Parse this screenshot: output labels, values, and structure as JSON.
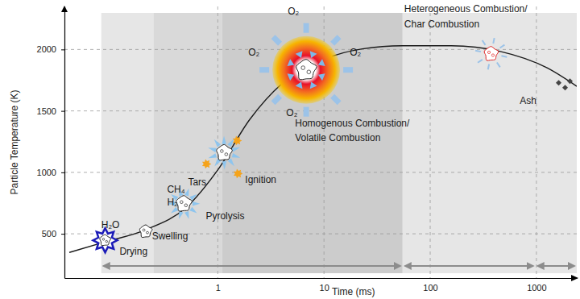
{
  "chart_data": {
    "type": "line",
    "x_label": "Time (ms)",
    "y_label": "Particle Temperature (K)",
    "log": "x",
    "grid": true,
    "xlim": [
      0.036,
      2400
    ],
    "ylim": [
      140,
      2350
    ],
    "xticks": [
      1,
      10,
      100,
      1000
    ],
    "yticks": [
      500,
      1000,
      1500,
      2000
    ],
    "color": "#1a1a1a",
    "x": [
      0.04,
      0.087,
      0.21,
      0.5,
      1,
      2,
      4,
      10,
      23,
      55,
      158,
      450,
      1260,
      2400
    ],
    "values": [
      348,
      434,
      533,
      712,
      1020,
      1430,
      1720,
      1920,
      2005,
      2030,
      2030,
      1985,
      1850,
      1700
    ],
    "shading": [
      {
        "start": 0.08,
        "end": 0.25,
        "color": "#e6e6e6"
      },
      {
        "start": 0.25,
        "end": 1.1,
        "color": "#d9d9d9"
      },
      {
        "start": 1.1,
        "end": 55,
        "color": "#cccccc"
      },
      {
        "start": 55,
        "end": 2400,
        "color": "#e6e6e6"
      }
    ],
    "ranges": [
      {
        "start": 0.08,
        "end": 55
      },
      {
        "start": 55,
        "end": 980
      },
      {
        "start": 980,
        "end": 2400
      }
    ],
    "particles": [
      {
        "x": 0.087,
        "y": 447
      },
      {
        "x": 0.21,
        "y": 520
      },
      {
        "x": 0.48,
        "y": 745
      },
      {
        "x": 1.15,
        "y": 1160
      },
      {
        "x": 6.8,
        "y": 1834
      },
      {
        "x": 375,
        "y": 1965
      },
      {
        "x": 1800,
        "y": 1715
      }
    ],
    "annotations": [
      {
        "text": "H₂O",
        "x": 0.08,
        "y": 546
      },
      {
        "text": "Drying",
        "x": 0.119,
        "y": 328
      },
      {
        "text": "Swelling",
        "x": 0.24,
        "y": 454
      },
      {
        "text": "CH₄",
        "x": 0.333,
        "y": 838
      },
      {
        "text": "Tars",
        "x": 0.525,
        "y": 897
      },
      {
        "text": "H₂",
        "x": 0.333,
        "y": 732
      },
      {
        "text": "Pyrolysis",
        "x": 0.77,
        "y": 619
      },
      {
        "text": "Ignition",
        "x": 1.81,
        "y": 917
      },
      {
        "text": "O₂",
        "x": 4.56,
        "y": 2285
      },
      {
        "text": "O₂",
        "x": 1.94,
        "y": 1947
      },
      {
        "text": "O₂",
        "x": 17.5,
        "y": 1947
      },
      {
        "text": "O₂",
        "x": 4.41,
        "y": 1457
      },
      {
        "text": "Homogenous Combustion/",
        "x": 5.34,
        "y": 1371
      },
      {
        "text": "Volatile Combustion",
        "x": 5.34,
        "y": 1252
      },
      {
        "text": "Heterogeneous Combustion/",
        "x": 57,
        "y": 2305
      },
      {
        "text": "Char Combustion",
        "x": 57,
        "y": 2179
      },
      {
        "text": "Ash",
        "x": 697,
        "y": 1556
      }
    ]
  }
}
